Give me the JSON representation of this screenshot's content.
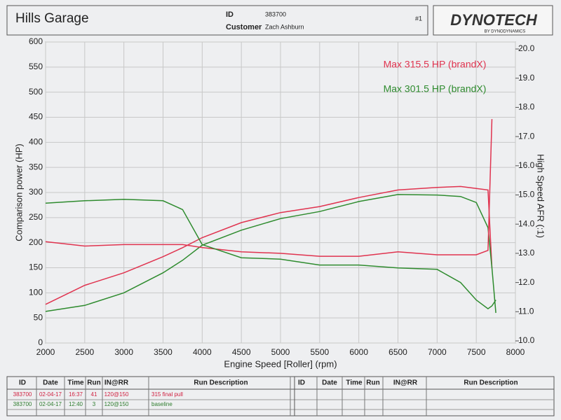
{
  "header": {
    "title": "Hills Garage",
    "id_label": "ID",
    "id": "383700",
    "run_no": "#1",
    "customer_label": "Customer",
    "customer": "Zach Ashburn"
  },
  "logo": {
    "name": "DYNOTECH",
    "tagline": "BY DYNODYNAMICS"
  },
  "chart_data": {
    "type": "line",
    "x_label": "Engine Speed [Roller] (rpm)",
    "y_label": "Comparison power (HP)",
    "y2_label": "High Speed AFR (:1)",
    "x": [
      2000,
      2500,
      3000,
      3500,
      3750,
      4000,
      4500,
      5000,
      5500,
      6000,
      6500,
      7000,
      7300,
      7500,
      7650,
      7700,
      7750
    ],
    "series": [
      {
        "color": "#e0334f",
        "values": [
          77,
          115,
          140,
          172,
          190,
          210,
          240,
          260,
          272,
          290,
          305,
          310,
          312,
          308,
          305,
          150,
          null
        ]
      },
      {
        "color": "#2e8b2e",
        "values": [
          63,
          75,
          100,
          140,
          165,
          195,
          225,
          248,
          262,
          282,
          296,
          295,
          292,
          280,
          230,
          150,
          60
        ]
      },
      {
        "color": "#e0334f",
        "axis": "y2",
        "values": [
          13.4,
          13.25,
          13.3,
          13.3,
          13.3,
          13.2,
          13.05,
          13.0,
          12.9,
          12.9,
          13.05,
          12.95,
          12.95,
          12.95,
          13.1,
          17.6,
          null
        ]
      },
      {
        "color": "#2e8b2e",
        "axis": "y2",
        "values": [
          14.72,
          14.8,
          14.85,
          14.8,
          14.5,
          13.3,
          12.85,
          12.8,
          12.6,
          12.6,
          12.5,
          12.45,
          12.0,
          11.4,
          11.1,
          11.2,
          11.4
        ]
      }
    ],
    "annotations": [
      {
        "text": "Max 315.5 HP (brandX)",
        "color": "#e0334f"
      },
      {
        "text": "Max 301.5 HP (brandX)",
        "color": "#2e8b2e"
      }
    ],
    "xlim": [
      2000,
      8000
    ],
    "xticks": [
      2000,
      2500,
      3000,
      3500,
      4000,
      4500,
      5000,
      5500,
      6000,
      6500,
      7000,
      7500,
      8000
    ],
    "ylim": [
      0,
      600
    ],
    "yticks": [
      0,
      50,
      100,
      150,
      200,
      250,
      300,
      350,
      400,
      450,
      500,
      550,
      600
    ],
    "y2lim": [
      10,
      20
    ],
    "y2ticks": [
      {
        "value": 10,
        "label": "10.0"
      },
      {
        "value": 11,
        "label": "11.0"
      },
      {
        "value": 12,
        "label": "12.0"
      },
      {
        "value": 13,
        "label": "13.0"
      },
      {
        "value": 14,
        "label": "14.0"
      },
      {
        "value": 15,
        "label": "15.0"
      },
      {
        "value": 16,
        "label": "16.0"
      },
      {
        "value": 17,
        "label": "17.0"
      },
      {
        "value": 18,
        "label": "18.0"
      },
      {
        "value": 19,
        "label": "19.0"
      },
      {
        "value": 20,
        "label": "20.0"
      }
    ],
    "grid": true
  },
  "table": {
    "columns": [
      "ID",
      "Date",
      "Time",
      "Run",
      "IN@RR",
      "Run Description",
      "ID",
      "Date",
      "Time",
      "Run",
      "IN@RR",
      "Run Description"
    ],
    "rows": [
      [
        "383700",
        "02-04-17",
        "16:37",
        "41",
        "120@150",
        "315 final pull"
      ],
      [
        "383700",
        "02-04-17",
        "12:40",
        "3",
        "120@150",
        "baseline"
      ]
    ],
    "row_colors": [
      "#d02040",
      "#2e7d2e"
    ]
  }
}
